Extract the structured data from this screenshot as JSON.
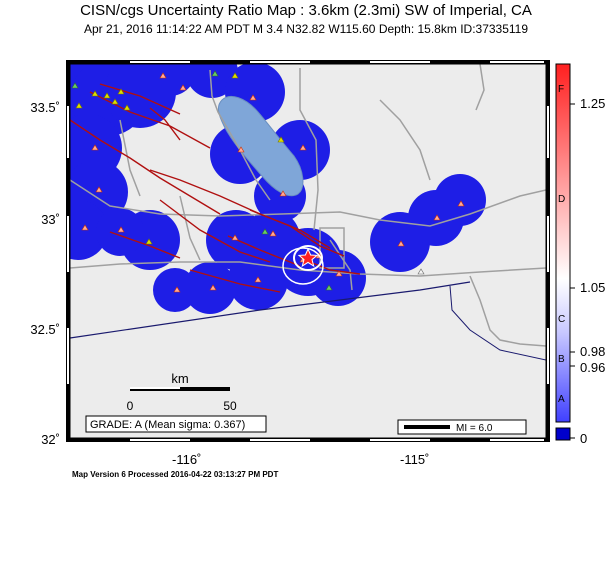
{
  "title": "CISN/cgs Uncertainty Ratio Map : 3.6km (2.3mi) SW of Imperial, CA",
  "subtitle": "Apr 21, 2016 11:14:22 AM PDT   M 3.4   N32.82 W115.60   Depth: 15.8km   ID:37335119",
  "y_ticks": [
    "33.5˚",
    "33˚",
    "32.5˚",
    "32˚"
  ],
  "x_ticks": [
    "-116˚",
    "-115˚"
  ],
  "scale_bar": {
    "unit": "km",
    "start": "0",
    "end": "50"
  },
  "grade": "GRADE: A (Mean sigma: 0.367)",
  "mi_legend": "MI = 6.0",
  "colorbar": {
    "letters": [
      "F",
      "D",
      "C",
      "B",
      "A"
    ],
    "values": [
      "1.25",
      "1.05",
      "0.98",
      "0.96",
      "0"
    ]
  },
  "footer": "Map Version 6 Processed 2016-04-22 03:13:27 PM PDT",
  "colors": {
    "coverage": "#1e1ee6",
    "land": "#ececec",
    "lake": "#7fa6d8",
    "fault": "#b01010",
    "road": "#a0a0a0"
  }
}
